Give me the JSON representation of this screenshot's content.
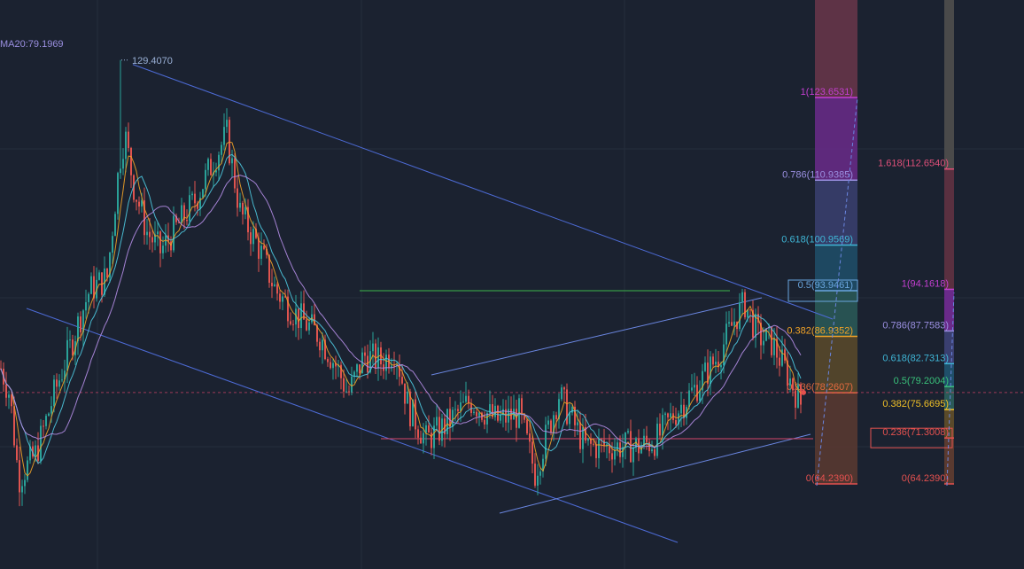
{
  "chart_data": {
    "type": "candlestick",
    "indicator_label": "MA20:79.1969",
    "peak_label": "129.4070",
    "fib_left": [
      {
        "label": "1(123.6531)",
        "value": 123.6531,
        "color": "#c33fd0"
      },
      {
        "label": "0.786(110.9385)",
        "value": 110.9385,
        "color": "#9a8fe0"
      },
      {
        "label": "0.618(100.9569)",
        "value": 100.9569,
        "color": "#3fb6d6"
      },
      {
        "label": "0.5(93.9461)",
        "value": 93.9461,
        "color": "#6aa6df"
      },
      {
        "label": "0.382(86.9352)",
        "value": 86.9352,
        "color": "#f0a227"
      },
      {
        "label": "0.236(78.2607)",
        "value": 78.2607,
        "color": "#e36a3f"
      },
      {
        "label": "0(64.2390)",
        "value": 64.239,
        "color": "#e4514f"
      }
    ],
    "fib_right": [
      {
        "label": "1.618(112.6540)",
        "value": 112.654,
        "color": "#e0507a"
      },
      {
        "label": "1(94.1618)",
        "value": 94.1618,
        "color": "#c33fd0"
      },
      {
        "label": "0.786(87.7583)",
        "value": 87.7583,
        "color": "#9a8fe0"
      },
      {
        "label": "0.618(82.7313)",
        "value": 82.7313,
        "color": "#3fb6d6"
      },
      {
        "label": "0.5(79.2004)",
        "value": 79.2004,
        "color": "#39c07a"
      },
      {
        "label": "0.382(75.6695)",
        "value": 75.6695,
        "color": "#f0c027"
      },
      {
        "label": "0.236(71.3008)",
        "value": 71.3008,
        "color": "#e4514f"
      },
      {
        "label": "0(64.2390)",
        "value": 64.239,
        "color": "#e4514f"
      }
    ],
    "price_anchors": [
      {
        "x": 0,
        "price": 82
      },
      {
        "x": 10,
        "price": 78
      },
      {
        "x": 20,
        "price": 65
      },
      {
        "x": 40,
        "price": 69
      },
      {
        "x": 60,
        "price": 78
      },
      {
        "x": 80,
        "price": 86
      },
      {
        "x": 100,
        "price": 94
      },
      {
        "x": 120,
        "price": 96
      },
      {
        "x": 134,
        "price": 114
      },
      {
        "x": 140,
        "price": 118
      },
      {
        "x": 150,
        "price": 110
      },
      {
        "x": 165,
        "price": 103
      },
      {
        "x": 180,
        "price": 100
      },
      {
        "x": 200,
        "price": 104
      },
      {
        "x": 220,
        "price": 108
      },
      {
        "x": 240,
        "price": 114
      },
      {
        "x": 255,
        "price": 118
      },
      {
        "x": 270,
        "price": 106
      },
      {
        "x": 290,
        "price": 101
      },
      {
        "x": 310,
        "price": 94
      },
      {
        "x": 335,
        "price": 90
      },
      {
        "x": 360,
        "price": 87
      },
      {
        "x": 380,
        "price": 82
      },
      {
        "x": 392,
        "price": 78
      },
      {
        "x": 410,
        "price": 84
      },
      {
        "x": 430,
        "price": 83
      },
      {
        "x": 445,
        "price": 85
      },
      {
        "x": 460,
        "price": 76
      },
      {
        "x": 480,
        "price": 71
      },
      {
        "x": 500,
        "price": 73
      },
      {
        "x": 530,
        "price": 77
      },
      {
        "x": 560,
        "price": 74
      },
      {
        "x": 585,
        "price": 75
      },
      {
        "x": 603,
        "price": 66
      },
      {
        "x": 630,
        "price": 78
      },
      {
        "x": 660,
        "price": 70
      },
      {
        "x": 690,
        "price": 70
      },
      {
        "x": 720,
        "price": 70
      },
      {
        "x": 740,
        "price": 71
      },
      {
        "x": 760,
        "price": 75
      },
      {
        "x": 790,
        "price": 80
      },
      {
        "x": 810,
        "price": 84
      },
      {
        "x": 830,
        "price": 90
      },
      {
        "x": 840,
        "price": 92
      },
      {
        "x": 855,
        "price": 87
      },
      {
        "x": 870,
        "price": 86
      },
      {
        "x": 885,
        "price": 82
      },
      {
        "x": 905,
        "price": 76
      }
    ],
    "peak_price": 129.407,
    "last_price": 78.3
  }
}
